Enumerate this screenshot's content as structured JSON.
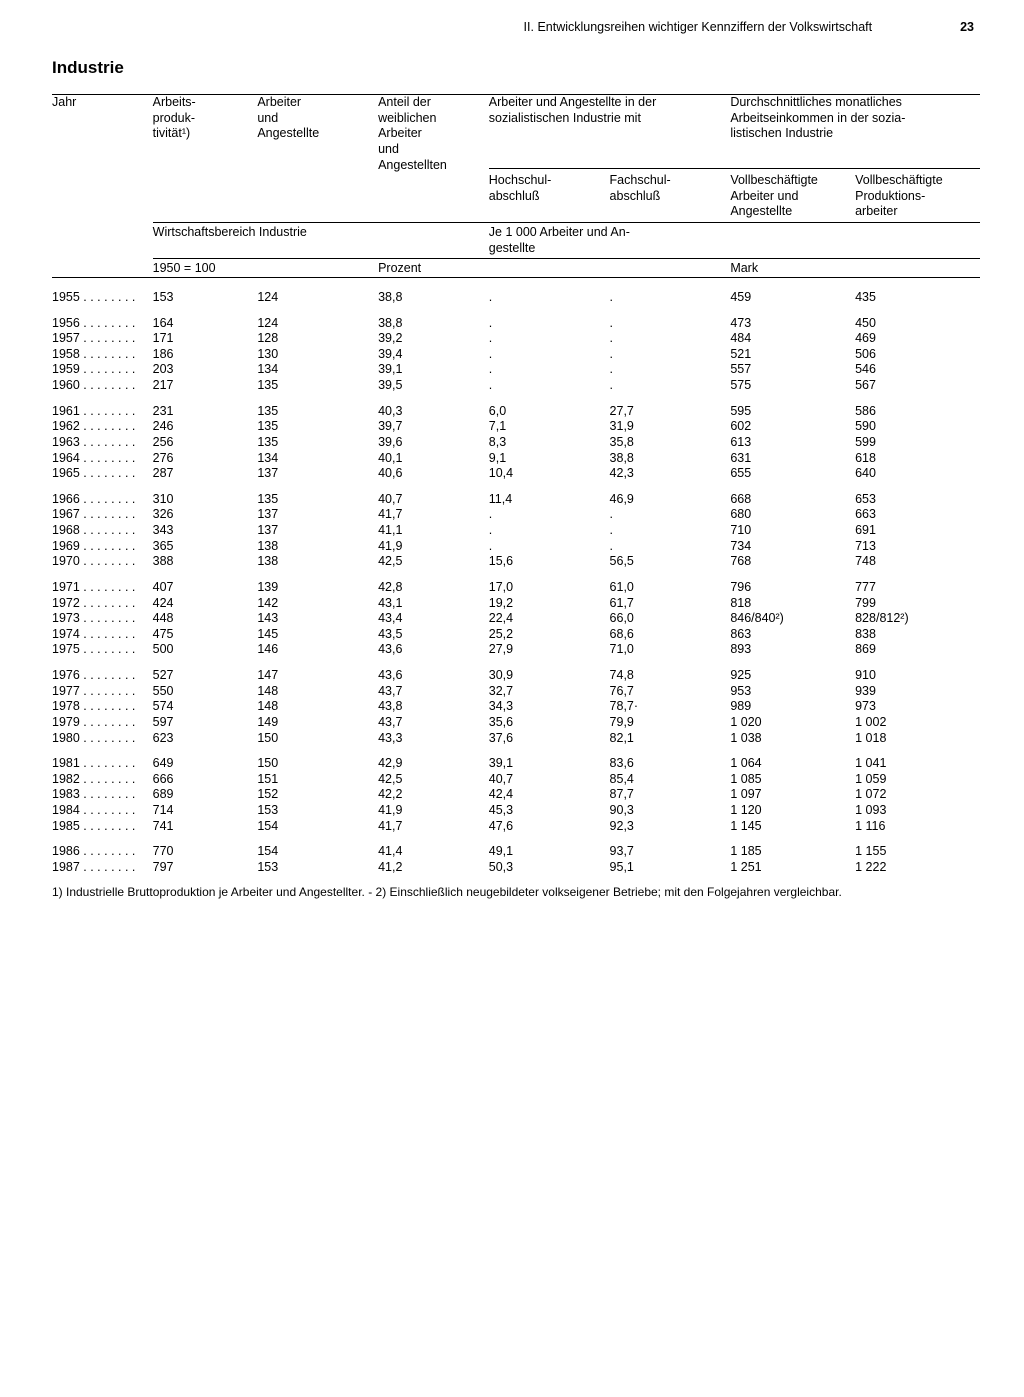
{
  "page": {
    "running_title": "II. Entwicklungsreihen wichtiger Kennziffern der Volkswirtschaft",
    "page_number": "23",
    "section_title": "Industrie"
  },
  "headers": {
    "year": "Jahr",
    "prod": "Arbeits-\nproduk-\ntivität¹)",
    "emp": "Arbeiter\nund\nAngestellte",
    "pct": "Anteil der\nweiblichen\nArbeiter\nund\nAngestellten",
    "edu_span": "Arbeiter und Angestellte in der\nsozialistischen Industrie mit",
    "hs": "Hochschul-\nabschluß",
    "fs": "Fachschul-\nabschluß",
    "inc_span": "Durchschnittliches monatliches\nArbeitseinkommen in der sozia-\nlistischen Industrie",
    "inc1": "Vollbeschäftigte\nArbeiter und\nAngestellte",
    "inc2": "Vollbeschäftigte\nProduktions-\narbeiter",
    "sub_scope": "Wirtschaftsbereich Industrie",
    "sub_edu": "Je 1 000 Arbeiter und An-\ngestellte",
    "unit_index": "1950 = 100",
    "unit_pct": "Prozent",
    "unit_mark": "Mark"
  },
  "rows": [
    [
      {
        "y": "1955",
        "p": "153",
        "e": "124",
        "pct": "38,8",
        "hs": ".",
        "fs": ".",
        "i1": "459",
        "i2": "435"
      }
    ],
    [
      {
        "y": "1956",
        "p": "164",
        "e": "124",
        "pct": "38,8",
        "hs": ".",
        "fs": ".",
        "i1": "473",
        "i2": "450"
      },
      {
        "y": "1957",
        "p": "171",
        "e": "128",
        "pct": "39,2",
        "hs": ".",
        "fs": ".",
        "i1": "484",
        "i2": "469"
      },
      {
        "y": "1958",
        "p": "186",
        "e": "130",
        "pct": "39,4",
        "hs": ".",
        "fs": ".",
        "i1": "521",
        "i2": "506"
      },
      {
        "y": "1959",
        "p": "203",
        "e": "134",
        "pct": "39,1",
        "hs": ".",
        "fs": ".",
        "i1": "557",
        "i2": "546"
      },
      {
        "y": "1960",
        "p": "217",
        "e": "135",
        "pct": "39,5",
        "hs": ".",
        "fs": ".",
        "i1": "575",
        "i2": "567"
      }
    ],
    [
      {
        "y": "1961",
        "p": "231",
        "e": "135",
        "pct": "40,3",
        "hs": "6,0",
        "fs": "27,7",
        "i1": "595",
        "i2": "586"
      },
      {
        "y": "1962",
        "p": "246",
        "e": "135",
        "pct": "39,7",
        "hs": "7,1",
        "fs": "31,9",
        "i1": "602",
        "i2": "590"
      },
      {
        "y": "1963",
        "p": "256",
        "e": "135",
        "pct": "39,6",
        "hs": "8,3",
        "fs": "35,8",
        "i1": "613",
        "i2": "599"
      },
      {
        "y": "1964",
        "p": "276",
        "e": "134",
        "pct": "40,1",
        "hs": "9,1",
        "fs": "38,8",
        "i1": "631",
        "i2": "618"
      },
      {
        "y": "1965",
        "p": "287",
        "e": "137",
        "pct": "40,6",
        "hs": "10,4",
        "fs": "42,3",
        "i1": "655",
        "i2": "640"
      }
    ],
    [
      {
        "y": "1966",
        "p": "310",
        "e": "135",
        "pct": "40,7",
        "hs": "11,4",
        "fs": "46,9",
        "i1": "668",
        "i2": "653"
      },
      {
        "y": "1967",
        "p": "326",
        "e": "137",
        "pct": "41,7",
        "hs": ".",
        "fs": ".",
        "i1": "680",
        "i2": "663"
      },
      {
        "y": "1968",
        "p": "343",
        "e": "137",
        "pct": "41,1",
        "hs": ".",
        "fs": ".",
        "i1": "710",
        "i2": "691"
      },
      {
        "y": "1969",
        "p": "365",
        "e": "138",
        "pct": "41,9",
        "hs": ".",
        "fs": ".",
        "i1": "734",
        "i2": "713"
      },
      {
        "y": "1970",
        "p": "388",
        "e": "138",
        "pct": "42,5",
        "hs": "15,6",
        "fs": "56,5",
        "i1": "768",
        "i2": "748"
      }
    ],
    [
      {
        "y": "1971",
        "p": "407",
        "e": "139",
        "pct": "42,8",
        "hs": "17,0",
        "fs": "61,0",
        "i1": "796",
        "i2": "777"
      },
      {
        "y": "1972",
        "p": "424",
        "e": "142",
        "pct": "43,1",
        "hs": "19,2",
        "fs": "61,7",
        "i1": "818",
        "i2": "799"
      },
      {
        "y": "1973",
        "p": "448",
        "e": "143",
        "pct": "43,4",
        "hs": "22,4",
        "fs": "66,0",
        "i1": "846/840²)",
        "i2": "828/812²)"
      },
      {
        "y": "1974",
        "p": "475",
        "e": "145",
        "pct": "43,5",
        "hs": "25,2",
        "fs": "68,6",
        "i1": "863",
        "i2": "838"
      },
      {
        "y": "1975",
        "p": "500",
        "e": "146",
        "pct": "43,6",
        "hs": "27,9",
        "fs": "71,0",
        "i1": "893",
        "i2": "869"
      }
    ],
    [
      {
        "y": "1976",
        "p": "527",
        "e": "147",
        "pct": "43,6",
        "hs": "30,9",
        "fs": "74,8",
        "i1": "925",
        "i2": "910"
      },
      {
        "y": "1977",
        "p": "550",
        "e": "148",
        "pct": "43,7",
        "hs": "32,7",
        "fs": "76,7",
        "i1": "953",
        "i2": "939"
      },
      {
        "y": "1978",
        "p": "574",
        "e": "148",
        "pct": "43,8",
        "hs": "34,3",
        "fs": "78,7·",
        "i1": "989",
        "i2": "973"
      },
      {
        "y": "1979",
        "p": "597",
        "e": "149",
        "pct": "43,7",
        "hs": "35,6",
        "fs": "79,9",
        "i1": "1 020",
        "i2": "1 002"
      },
      {
        "y": "1980",
        "p": "623",
        "e": "150",
        "pct": "43,3",
        "hs": "37,6",
        "fs": "82,1",
        "i1": "1 038",
        "i2": "1 018"
      }
    ],
    [
      {
        "y": "1981",
        "p": "649",
        "e": "150",
        "pct": "42,9",
        "hs": "39,1",
        "fs": "83,6",
        "i1": "1 064",
        "i2": "1 041"
      },
      {
        "y": "1982",
        "p": "666",
        "e": "151",
        "pct": "42,5",
        "hs": "40,7",
        "fs": "85,4",
        "i1": "1 085",
        "i2": "1 059"
      },
      {
        "y": "1983",
        "p": "689",
        "e": "152",
        "pct": "42,2",
        "hs": "42,4",
        "fs": "87,7",
        "i1": "1 097",
        "i2": "1 072"
      },
      {
        "y": "1984",
        "p": "714",
        "e": "153",
        "pct": "41,9",
        "hs": "45,3",
        "fs": "90,3",
        "i1": "1 120",
        "i2": "1 093"
      },
      {
        "y": "1985",
        "p": "741",
        "e": "154",
        "pct": "41,7",
        "hs": "47,6",
        "fs": "92,3",
        "i1": "1 145",
        "i2": "1 116"
      }
    ],
    [
      {
        "y": "1986",
        "p": "770",
        "e": "154",
        "pct": "41,4",
        "hs": "49,1",
        "fs": "93,7",
        "i1": "1 185",
        "i2": "1 155"
      },
      {
        "y": "1987",
        "p": "797",
        "e": "153",
        "pct": "41,2",
        "hs": "50,3",
        "fs": "95,1",
        "i1": "1 251",
        "i2": "1 222"
      }
    ]
  ],
  "footnote": "1) Industrielle Bruttoproduktion je Arbeiter und Angestellter. - 2) Einschließlich neugebildeter volkseigener Betriebe; mit den Folgejahren vergleichbar."
}
